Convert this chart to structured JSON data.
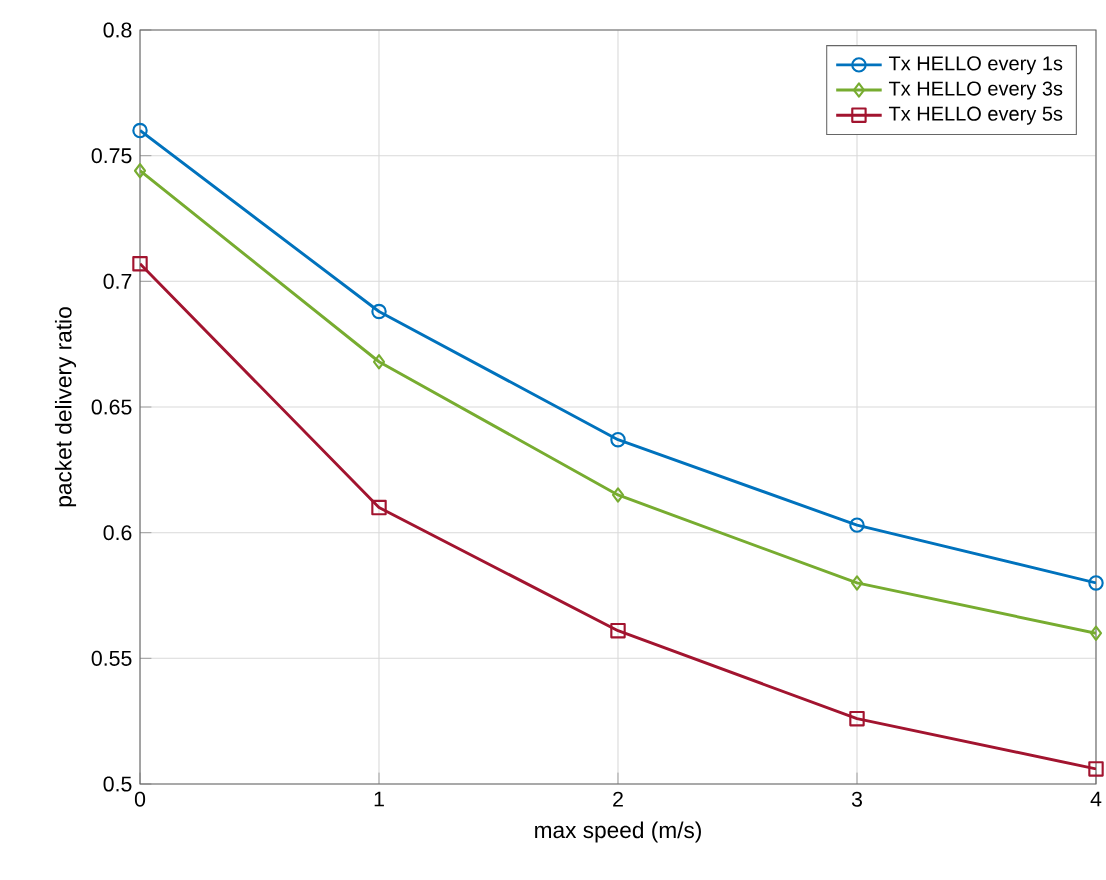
{
  "chart_data": {
    "type": "line",
    "xlabel": "max speed (m/s)",
    "ylabel": "packet delivery ratio",
    "x": [
      0,
      1,
      2,
      3,
      4
    ],
    "series": [
      {
        "name": "Tx HELLO every 1s",
        "color": "#0072bd",
        "marker": "circle",
        "values": [
          0.76,
          0.688,
          0.637,
          0.603,
          0.58
        ]
      },
      {
        "name": "Tx HELLO every 3s",
        "color": "#77ac30",
        "marker": "diamond",
        "values": [
          0.744,
          0.668,
          0.615,
          0.58,
          0.56
        ]
      },
      {
        "name": "Tx HELLO every 5s",
        "color": "#a2142f",
        "marker": "square",
        "values": [
          0.707,
          0.61,
          0.561,
          0.526,
          0.506
        ]
      }
    ],
    "xlim": [
      0,
      4
    ],
    "ylim": [
      0.5,
      0.8
    ],
    "xticks": [
      0,
      1,
      2,
      3,
      4
    ],
    "yticks": [
      0.5,
      0.55,
      0.6,
      0.65,
      0.7,
      0.75,
      0.8
    ],
    "grid": true,
    "legend": "top right",
    "line_style": "solid"
  }
}
